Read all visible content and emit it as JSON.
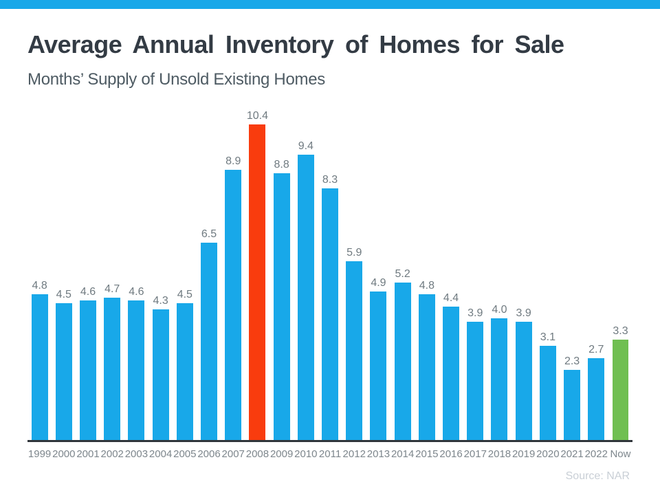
{
  "page": {
    "title": "Average Annual Inventory of Homes for Sale",
    "subtitle": "Months’ Supply of Unsold Existing Homes",
    "source": "Source: NAR"
  },
  "colors": {
    "accent_strip": "#18a8e9",
    "bar_default": "#18a8e9",
    "bar_highlight_peak": "#f93c0e",
    "bar_highlight_now": "#70bf51",
    "axis": "#30363b",
    "value_label": "#6f7a80",
    "x_label": "#7d868c",
    "title_text": "#333b44",
    "subtitle_text": "#4e5b63",
    "source_text": "#c9cfd6"
  },
  "chart_data": {
    "type": "bar",
    "title": "Average Annual Inventory of Homes for Sale",
    "subtitle": "Months’ Supply of Unsold Existing Homes",
    "xlabel": "",
    "ylabel": "",
    "ylim": [
      0,
      10.4
    ],
    "grid": false,
    "legend_position": "none",
    "source": "Source: NAR",
    "categories": [
      "1999",
      "2000",
      "2001",
      "2002",
      "2003",
      "2004",
      "2005",
      "2006",
      "2007",
      "2008",
      "2009",
      "2010",
      "2011",
      "2012",
      "2013",
      "2014",
      "2015",
      "2016",
      "2017",
      "2018",
      "2019",
      "2020",
      "2021",
      "2022",
      "Now"
    ],
    "values": [
      4.8,
      4.5,
      4.6,
      4.7,
      4.6,
      4.3,
      4.5,
      6.5,
      8.9,
      10.4,
      8.8,
      9.4,
      8.3,
      5.9,
      4.9,
      5.2,
      4.8,
      4.4,
      3.9,
      4.0,
      3.9,
      3.1,
      2.3,
      2.7,
      3.3
    ],
    "value_labels": [
      "4.8",
      "4.5",
      "4.6",
      "4.7",
      "4.6",
      "4.3",
      "4.5",
      "6.5",
      "8.9",
      "10.4",
      "8.8",
      "9.4",
      "8.3",
      "5.9",
      "4.9",
      "5.2",
      "4.8",
      "4.4",
      "3.9",
      "4.0",
      "3.9",
      "3.1",
      "2.3",
      "2.7",
      "3.3"
    ],
    "highlights": [
      {
        "category": "2008",
        "color": "#f93c0e"
      },
      {
        "category": "Now",
        "color": "#70bf51"
      }
    ]
  }
}
